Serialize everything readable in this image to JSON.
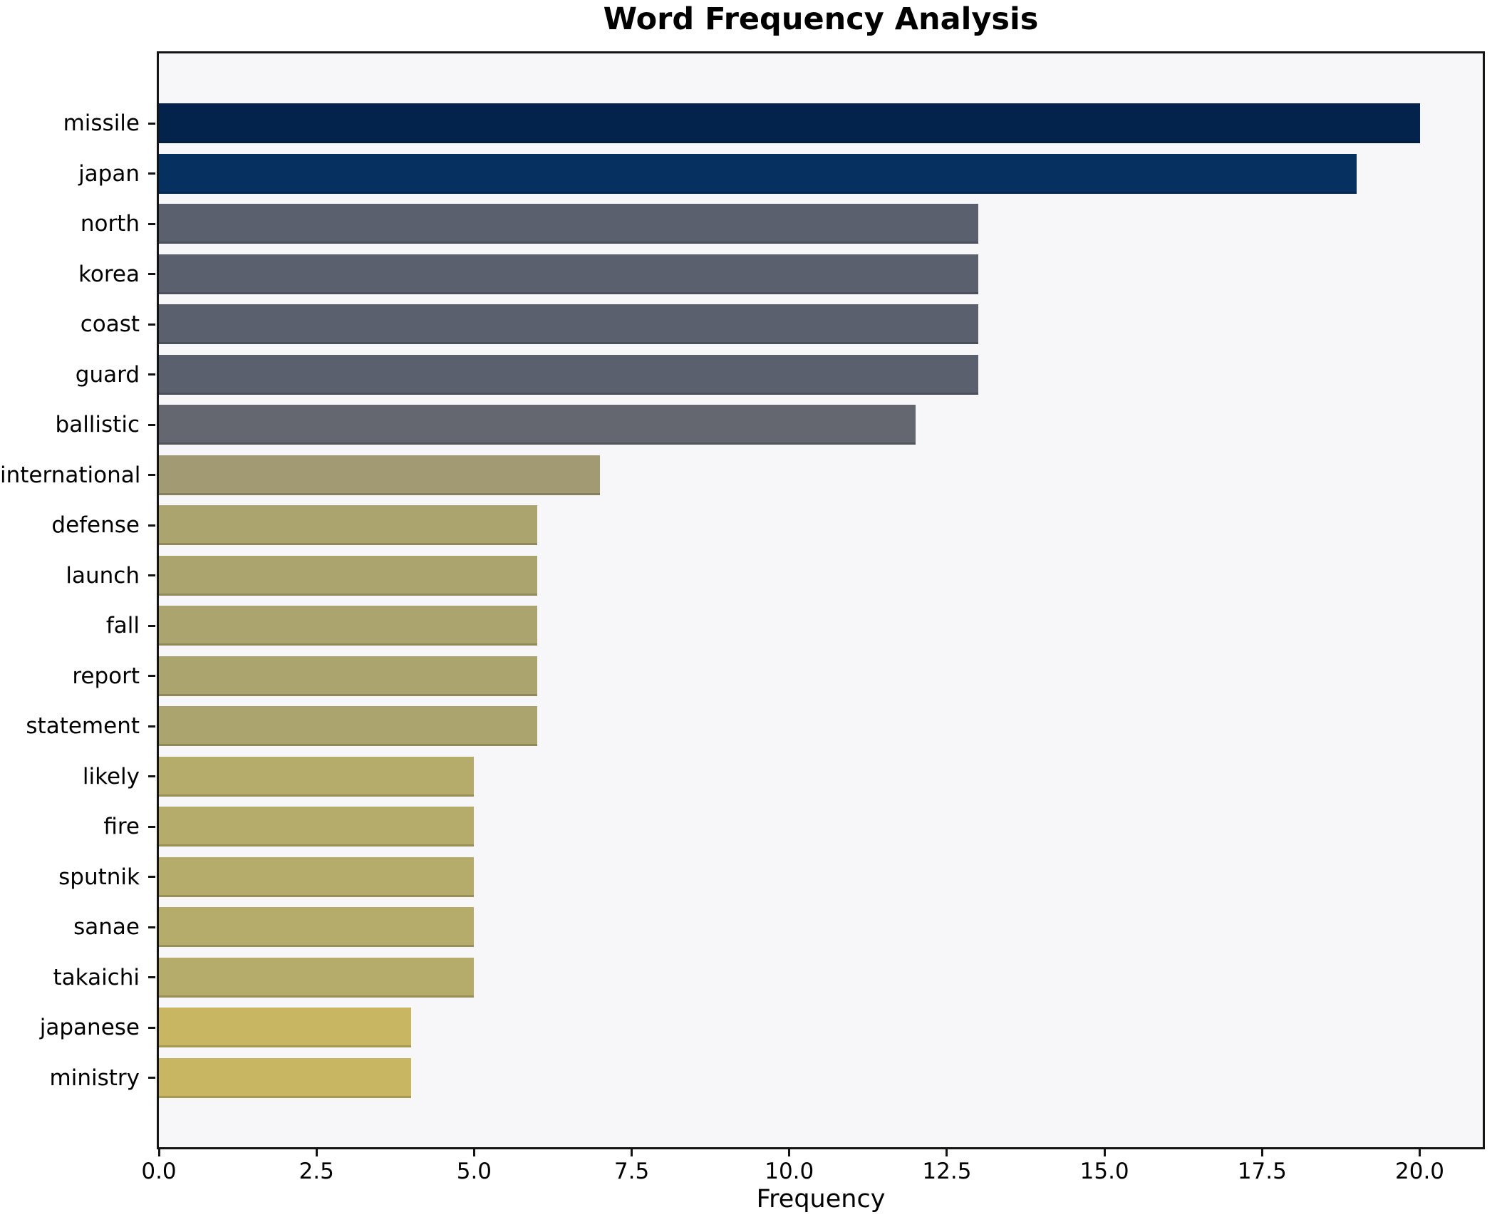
{
  "title": "Word Frequency Analysis",
  "chart_data": {
    "type": "bar",
    "orientation": "horizontal",
    "title": "Word Frequency Analysis",
    "xlabel": "Frequency",
    "ylabel": "",
    "categories": [
      "missile",
      "japan",
      "north",
      "korea",
      "coast",
      "guard",
      "ballistic",
      "international",
      "defense",
      "launch",
      "fall",
      "report",
      "statement",
      "likely",
      "fire",
      "sputnik",
      "sanae",
      "takaichi",
      "japanese",
      "ministry"
    ],
    "values": [
      20,
      19,
      13,
      13,
      13,
      13,
      12,
      7,
      6,
      6,
      6,
      6,
      6,
      5,
      5,
      5,
      5,
      5,
      4,
      4
    ],
    "bar_colors": [
      "#03224c",
      "#05305f",
      "#5b606e",
      "#5b606e",
      "#5b606e",
      "#5b606e",
      "#64676f",
      "#a19a72",
      "#aca46e",
      "#aca46e",
      "#aca46e",
      "#aca46e",
      "#aca46e",
      "#b5ab6a",
      "#b5ab6a",
      "#b5ab6a",
      "#b5ab6a",
      "#b5ab6a",
      "#c8b662",
      "#c8b662"
    ],
    "xlim": [
      0,
      21
    ],
    "xticks": [
      0,
      2.5,
      5,
      7.5,
      10,
      12.5,
      15,
      17.5,
      20
    ],
    "xtick_labels": [
      "0.0",
      "2.5",
      "5.0",
      "7.5",
      "10.0",
      "12.5",
      "15.0",
      "17.5",
      "20.0"
    ],
    "grid": false,
    "legend": null,
    "colors": {
      "plot_background": "#f7f7f9",
      "figure_background": "#ffffff",
      "spine": "#141414",
      "text": "#000000"
    }
  }
}
